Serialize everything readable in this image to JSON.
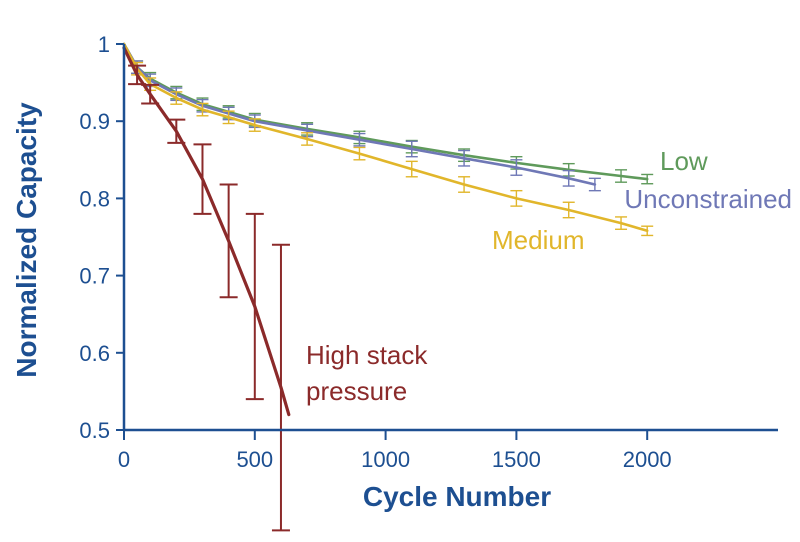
{
  "chart_data": {
    "type": "line",
    "title": "",
    "xlabel": "Cycle Number",
    "ylabel": "Normalized Capacity",
    "xlim": [
      0,
      2500
    ],
    "ylim": [
      0.5,
      1.0
    ],
    "xticks": [
      0,
      500,
      1000,
      1500,
      2000
    ],
    "yticks": [
      0.5,
      0.6,
      0.7,
      0.8,
      0.9,
      1.0
    ],
    "xtick_labels": [
      "0",
      "500",
      "1000",
      "1500",
      "2000"
    ],
    "ytick_labels": [
      "0.5",
      "0.6",
      "0.7",
      "0.8",
      "0.9",
      "1"
    ],
    "grid": false,
    "legend": "inline labels near line ends",
    "colors": {
      "axis": "#1d4f91",
      "low": "#5f9a5b",
      "unconstrained": "#6f78b6",
      "medium": "#e1b62b",
      "high_stack_pressure": "#8b2a2a"
    },
    "series": [
      {
        "name": "Low",
        "label_lines": [
          "Low"
        ],
        "color": "#5f9a5b",
        "x": [
          0,
          50,
          100,
          200,
          300,
          400,
          500,
          700,
          900,
          1100,
          1300,
          1500,
          1700,
          1900,
          2000
        ],
        "y": [
          1.0,
          0.97,
          0.955,
          0.937,
          0.922,
          0.912,
          0.902,
          0.89,
          0.879,
          0.867,
          0.856,
          0.846,
          0.837,
          0.829,
          0.825
        ],
        "err": [
          0,
          0.008,
          0.008,
          0.008,
          0.008,
          0.008,
          0.008,
          0.008,
          0.008,
          0.008,
          0.008,
          0.008,
          0.008,
          0.008,
          0.006
        ]
      },
      {
        "name": "Unconstrained",
        "label_lines": [
          "Unconstrained"
        ],
        "color": "#6f78b6",
        "x": [
          0,
          50,
          100,
          200,
          300,
          400,
          500,
          700,
          900,
          1100,
          1300,
          1500,
          1700,
          1800
        ],
        "y": [
          1.0,
          0.97,
          0.953,
          0.935,
          0.92,
          0.91,
          0.9,
          0.888,
          0.876,
          0.864,
          0.852,
          0.84,
          0.826,
          0.818
        ],
        "err": [
          0,
          0.008,
          0.008,
          0.008,
          0.008,
          0.008,
          0.008,
          0.008,
          0.008,
          0.01,
          0.01,
          0.01,
          0.01,
          0.008
        ]
      },
      {
        "name": "Medium",
        "label_lines": [
          "Medium"
        ],
        "color": "#e1b62b",
        "x": [
          0,
          50,
          100,
          200,
          300,
          400,
          500,
          700,
          900,
          1100,
          1300,
          1500,
          1700,
          1900,
          2000
        ],
        "y": [
          1.0,
          0.968,
          0.948,
          0.93,
          0.915,
          0.905,
          0.895,
          0.877,
          0.858,
          0.838,
          0.818,
          0.8,
          0.785,
          0.768,
          0.758
        ],
        "err": [
          0,
          0.008,
          0.008,
          0.008,
          0.008,
          0.008,
          0.008,
          0.008,
          0.008,
          0.01,
          0.01,
          0.01,
          0.01,
          0.008,
          0.006
        ]
      },
      {
        "name": "High stack pressure",
        "label_lines": [
          "High stack",
          "pressure"
        ],
        "color": "#8b2a2a",
        "x": [
          0,
          50,
          100,
          200,
          300,
          400,
          500,
          600,
          630
        ],
        "y": [
          0.995,
          0.96,
          0.935,
          0.887,
          0.825,
          0.745,
          0.66,
          0.555,
          0.52
        ],
        "err": [
          0,
          0.012,
          0.012,
          0.015,
          0.045,
          0.073,
          0.12,
          0.185,
          0
        ]
      }
    ]
  }
}
